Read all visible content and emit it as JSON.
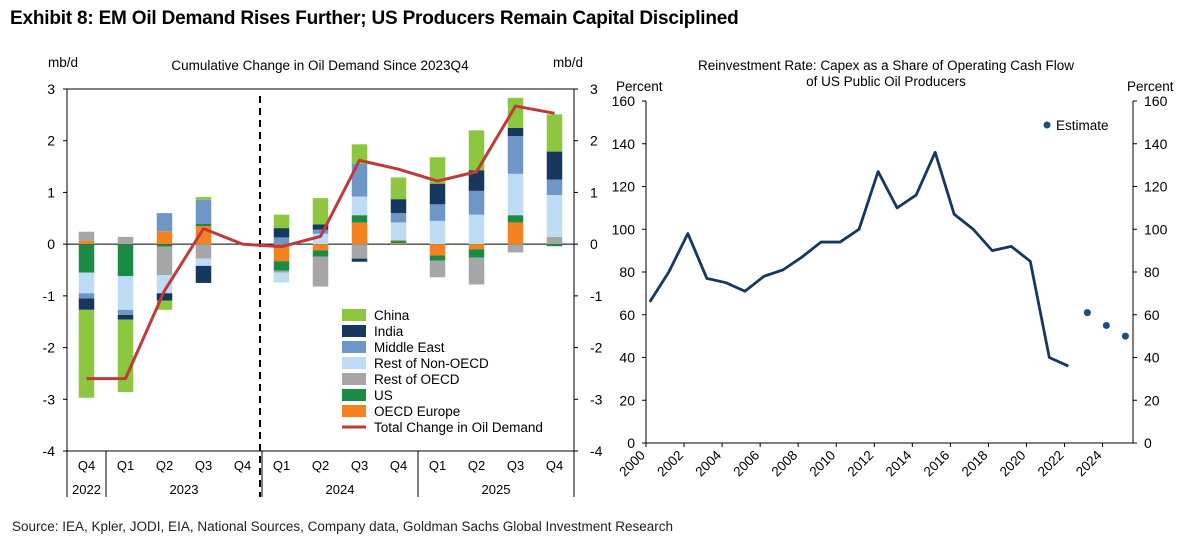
{
  "exhibit_title": "Exhibit 8: EM Oil Demand Rises Further; US Producers Remain Capital Disciplined",
  "source": "Source: IEA, Kpler, JODI, EIA, National Sources, Company data, Goldman Sachs Global Investment Research",
  "chart_data": [
    {
      "type": "bar",
      "stacked": true,
      "title": "Cumulative Change in Oil Demand Since 2023Q4",
      "ylabel_left": "mb/d",
      "ylabel_right": "mb/d",
      "ylim": [
        -4,
        3
      ],
      "yticks": [
        "3",
        "2",
        "1",
        "0",
        "-1",
        "-2",
        "-3",
        "-4"
      ],
      "categories": [
        "Q4",
        "Q1",
        "Q2",
        "Q3",
        "Q4",
        "Q1",
        "Q2",
        "Q3",
        "Q4",
        "Q1",
        "Q2",
        "Q3",
        "Q4"
      ],
      "years": [
        {
          "label": "2022",
          "start": 0,
          "end": 0
        },
        {
          "label": "2023",
          "start": 1,
          "end": 4
        },
        {
          "label": "2024",
          "start": 5,
          "end": 8
        },
        {
          "label": "2025",
          "start": 9,
          "end": 12
        }
      ],
      "divider_after_index": 4,
      "series": [
        {
          "name": "OECD Europe",
          "color": "#f58220",
          "values": [
            0.06,
            0.0,
            0.25,
            0.35,
            0.0,
            -0.33,
            -0.12,
            0.42,
            0.02,
            -0.22,
            -0.1,
            0.42,
            0.0
          ]
        },
        {
          "name": "US",
          "color": "#1a8a45",
          "values": [
            -0.55,
            -0.62,
            -0.05,
            0.04,
            0.0,
            -0.18,
            -0.12,
            0.14,
            0.04,
            -0.1,
            -0.16,
            0.14,
            -0.04
          ]
        },
        {
          "name": "Rest of OECD",
          "color": "#a6a6a6",
          "values": [
            0.18,
            0.14,
            -0.55,
            -0.28,
            0.0,
            -0.04,
            -0.58,
            -0.28,
            0.02,
            -0.32,
            -0.52,
            -0.16,
            0.14
          ]
        },
        {
          "name": "Rest of Non-OECD",
          "color": "#bfdcf5",
          "values": [
            -0.4,
            -0.65,
            -0.35,
            -0.14,
            0.0,
            -0.19,
            0.2,
            0.36,
            0.34,
            0.45,
            0.57,
            0.8,
            0.81
          ]
        },
        {
          "name": "Middle East",
          "color": "#6e97c8",
          "values": [
            -0.1,
            -0.1,
            0.35,
            0.47,
            0.0,
            0.13,
            0.08,
            0.63,
            0.18,
            0.32,
            0.46,
            0.73,
            0.3
          ]
        },
        {
          "name": "India",
          "color": "#17375e",
          "values": [
            -0.22,
            -0.09,
            -0.14,
            -0.33,
            0.0,
            0.18,
            0.1,
            -0.06,
            0.27,
            0.4,
            0.4,
            0.16,
            0.54
          ]
        },
        {
          "name": "China",
          "color": "#8dc63f",
          "values": [
            -1.7,
            -1.4,
            -0.18,
            0.05,
            0.0,
            0.26,
            0.51,
            0.38,
            0.42,
            0.51,
            0.77,
            0.58,
            0.72
          ]
        }
      ],
      "total": {
        "name": "Total Change in Oil Demand",
        "color": "#c0393b",
        "values": [
          -2.6,
          -2.6,
          -0.9,
          0.3,
          0.0,
          -0.05,
          0.15,
          1.62,
          1.45,
          1.22,
          1.4,
          2.67,
          2.53
        ]
      },
      "legend": [
        "China",
        "India",
        "Middle East",
        "Rest of Non-OECD",
        "Rest of OECD",
        "US",
        "OECD Europe",
        "Total Change in Oil Demand"
      ],
      "legend_position": "bottom-right"
    },
    {
      "type": "line",
      "title": "Reinvestment Rate: Capex as a Share of Operating Cash Flow",
      "title_line2": "of US Public Oil Producers",
      "ylabel_left": "Percent",
      "ylabel_right": "Percent",
      "ylim": [
        0,
        160
      ],
      "yticks": [
        "160",
        "140",
        "120",
        "100",
        "80",
        "60",
        "40",
        "20",
        "0"
      ],
      "xlim": [
        2000,
        2025.6
      ],
      "xticks": [
        "2000",
        "2002",
        "2004",
        "2006",
        "2008",
        "2010",
        "2012",
        "2014",
        "2016",
        "2018",
        "2020",
        "2022",
        "2024"
      ],
      "series": [
        {
          "name": "Reinvestment Rate",
          "color": "#17375e",
          "x": [
            2000.2,
            2001.2,
            2002.2,
            2003.2,
            2004.2,
            2005.2,
            2006.2,
            2007.2,
            2008.2,
            2009.2,
            2010.2,
            2011.2,
            2012.2,
            2013.2,
            2014.2,
            2015.2,
            2016.2,
            2017.2,
            2018.2,
            2019.2,
            2020.2,
            2021.2,
            2022.2
          ],
          "y": [
            66,
            80,
            98,
            77,
            75,
            71,
            78,
            81,
            87,
            94,
            94,
            100,
            127,
            110,
            116,
            136,
            107,
            100,
            90,
            92,
            85,
            40,
            36
          ]
        }
      ],
      "estimate": {
        "name": "Estimate",
        "color": "#1f4e79",
        "x": [
          2023.2,
          2024.2,
          2025.2
        ],
        "y": [
          61,
          55,
          50
        ]
      },
      "legend": [
        "Estimate"
      ],
      "legend_position": "top-right"
    }
  ]
}
